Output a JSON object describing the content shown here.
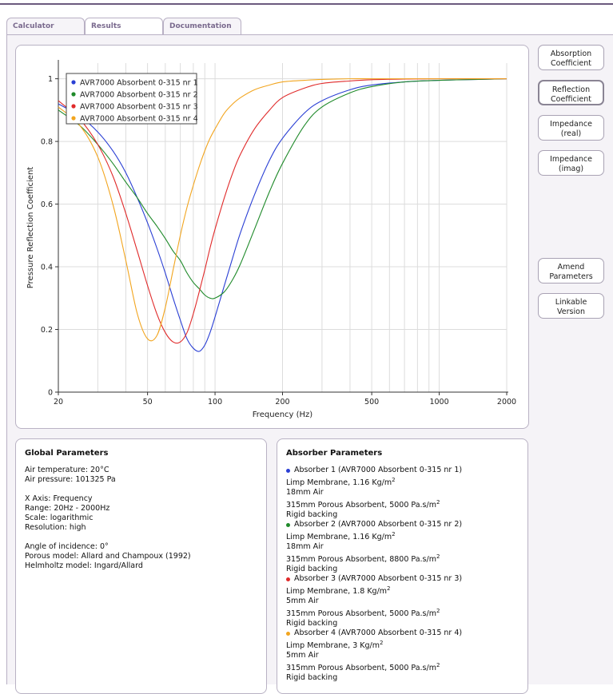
{
  "tabs": [
    "Calculator",
    "Results",
    "Documentation"
  ],
  "side_buttons": [
    {
      "label1": "Absorption",
      "label2": "Coefficient"
    },
    {
      "label1": "Reflection",
      "label2": "Coefficient"
    },
    {
      "label1": "Impedance",
      "label2": "(real)"
    },
    {
      "label1": "Impedance",
      "label2": "(imag)"
    },
    {
      "label1": "Amend",
      "label2": "Parameters"
    },
    {
      "label1": "Linkable",
      "label2": "Version"
    }
  ],
  "global": {
    "title": "Global Parameters",
    "lines": [
      "Air temperature: 20°C",
      "Air pressure: 101325 Pa",
      "",
      "X Axis: Frequency",
      "Range: 20Hz - 2000Hz",
      "Scale: logarithmic",
      "Resolution: high",
      "",
      "Angle of incidence: 0°",
      "Porous model: Allard and Champoux (1992)",
      "Helmholtz model: Ingard/Allard"
    ]
  },
  "absorber": {
    "title": "Absorber Parameters",
    "items": [
      {
        "head": "Absorber 1 (AVR7000 Absorbent 0-315 nr 1)",
        "color": "#2a3fd4",
        "membrane": "Limp Membrane, 1.16 Kg/m",
        "air": "18mm Air",
        "porous": "315mm Porous Absorbent, 5000 Pa.s/m",
        "backing": "Rigid backing"
      },
      {
        "head": "Absorber 2 (AVR7000 Absorbent 0-315 nr 2)",
        "color": "#1f8a2a",
        "membrane": "Limp Membrane, 1.16 Kg/m",
        "air": "18mm Air",
        "porous": "315mm Porous Absorbent, 8800 Pa.s/m",
        "backing": "Rigid backing"
      },
      {
        "head": "Absorber 3 (AVR7000 Absorbent 0-315 nr 3)",
        "color": "#e02a2a",
        "membrane": "Limp Membrane, 1.8 Kg/m",
        "air": "5mm Air",
        "porous": "315mm Porous Absorbent, 5000 Pa.s/m",
        "backing": "Rigid backing"
      },
      {
        "head": "Absorber 4 (AVR7000 Absorbent 0-315 nr 4)",
        "color": "#f2a51f",
        "membrane": "Limp Membrane, 3 Kg/m",
        "air": "5mm Air",
        "porous": "315mm Porous Absorbent, 5000 Pa.s/m",
        "backing": "Rigid backing"
      }
    ],
    "sup": "2"
  },
  "chart_data": {
    "type": "line",
    "xlabel": "Frequency (Hz)",
    "ylabel": "Pressure Reflection Coefficient",
    "xscale": "log",
    "xlim": [
      20,
      2000
    ],
    "ylim": [
      0,
      1.05
    ],
    "xticks": [
      20,
      50,
      100,
      200,
      500,
      1000,
      2000
    ],
    "yticks": [
      0,
      0.2,
      0.4,
      0.6,
      0.8,
      1
    ],
    "ytick_labels": [
      "0",
      "0.2",
      "0.4",
      "0.6",
      "0.8",
      "1"
    ],
    "legend_position": "top-left",
    "grid": true,
    "series": [
      {
        "name": "AVR7000 Absorbent 0-315 nr 1",
        "color": "#2a3fd4",
        "x": [
          20,
          25,
          30,
          35,
          40,
          45,
          50,
          55,
          60,
          65,
          70,
          75,
          80,
          85,
          90,
          95,
          100,
          110,
          120,
          130,
          150,
          175,
          200,
          250,
          300,
          400,
          500,
          700,
          1000,
          1500,
          2000
        ],
        "y": [
          0.92,
          0.88,
          0.83,
          0.77,
          0.7,
          0.62,
          0.54,
          0.46,
          0.38,
          0.3,
          0.23,
          0.17,
          0.14,
          0.13,
          0.15,
          0.19,
          0.24,
          0.34,
          0.43,
          0.51,
          0.63,
          0.74,
          0.81,
          0.89,
          0.93,
          0.965,
          0.98,
          0.99,
          0.995,
          0.998,
          1.0
        ]
      },
      {
        "name": "AVR7000 Absorbent 0-315 nr 2",
        "color": "#1f8a2a",
        "x": [
          20,
          25,
          30,
          35,
          40,
          45,
          50,
          55,
          60,
          65,
          70,
          75,
          80,
          85,
          90,
          95,
          100,
          110,
          120,
          130,
          150,
          175,
          200,
          250,
          300,
          400,
          500,
          700,
          1000,
          1500,
          2000
        ],
        "y": [
          0.9,
          0.85,
          0.79,
          0.73,
          0.67,
          0.62,
          0.57,
          0.53,
          0.49,
          0.45,
          0.42,
          0.38,
          0.35,
          0.33,
          0.31,
          0.3,
          0.3,
          0.32,
          0.36,
          0.41,
          0.52,
          0.64,
          0.73,
          0.85,
          0.91,
          0.955,
          0.975,
          0.99,
          0.995,
          0.998,
          1.0
        ]
      },
      {
        "name": "AVR7000 Absorbent 0-315 nr 3",
        "color": "#e02a2a",
        "x": [
          20,
          25,
          30,
          35,
          40,
          45,
          50,
          55,
          60,
          65,
          70,
          75,
          80,
          85,
          90,
          95,
          100,
          110,
          120,
          130,
          150,
          175,
          200,
          250,
          300,
          400,
          500,
          700,
          1000,
          1500,
          2000
        ],
        "y": [
          0.93,
          0.87,
          0.79,
          0.69,
          0.57,
          0.45,
          0.34,
          0.25,
          0.19,
          0.16,
          0.16,
          0.19,
          0.25,
          0.32,
          0.39,
          0.46,
          0.52,
          0.62,
          0.7,
          0.76,
          0.84,
          0.9,
          0.94,
          0.97,
          0.985,
          0.993,
          0.997,
          0.999,
          1.0,
          1.0,
          1.0
        ]
      },
      {
        "name": "AVR7000 Absorbent 0-315 nr 4",
        "color": "#f2a51f",
        "x": [
          20,
          25,
          30,
          35,
          40,
          45,
          50,
          55,
          60,
          65,
          70,
          75,
          80,
          85,
          90,
          95,
          100,
          110,
          120,
          130,
          150,
          175,
          200,
          250,
          300,
          400,
          500,
          700,
          1000,
          1500,
          2000
        ],
        "y": [
          0.91,
          0.85,
          0.75,
          0.6,
          0.42,
          0.25,
          0.17,
          0.18,
          0.27,
          0.39,
          0.5,
          0.59,
          0.66,
          0.72,
          0.77,
          0.81,
          0.84,
          0.89,
          0.92,
          0.94,
          0.965,
          0.98,
          0.99,
          0.995,
          0.998,
          1.0,
          1.0,
          1.0,
          1.0,
          1.0,
          1.0
        ]
      }
    ]
  }
}
